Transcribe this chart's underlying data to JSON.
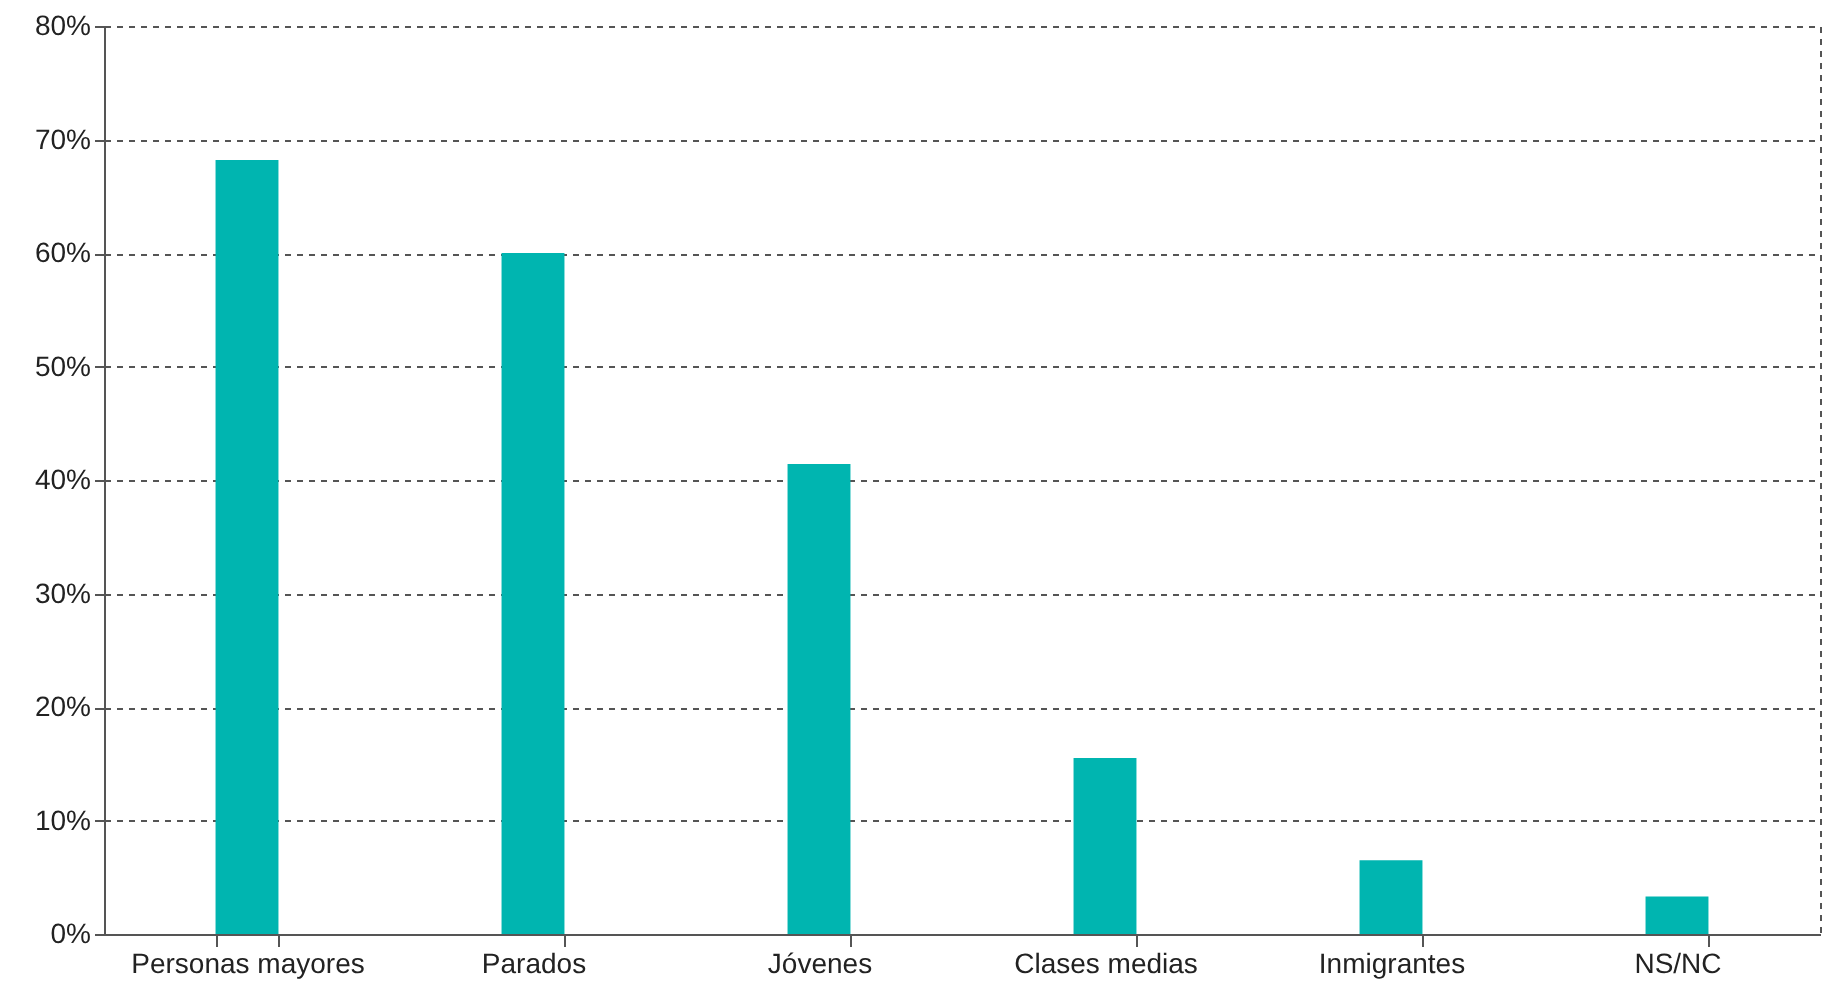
{
  "chart_data": {
    "type": "bar",
    "categories": [
      "Personas mayores",
      "Parados",
      "Jóvenes",
      "Clases medias",
      "Inmigrantes",
      "NS/NC"
    ],
    "values": [
      68.2,
      60,
      41.4,
      15.5,
      6.5,
      3.3
    ],
    "color": "#00b5b0",
    "ylim": [
      0,
      80
    ],
    "yticks": [
      {
        "value": 0,
        "label": "0%"
      },
      {
        "value": 10,
        "label": "10%"
      },
      {
        "value": 20,
        "label": "20%"
      },
      {
        "value": 30,
        "label": "30%"
      },
      {
        "value": 40,
        "label": "40%"
      },
      {
        "value": 50,
        "label": "50%"
      },
      {
        "value": 60,
        "label": "60%"
      },
      {
        "value": 70,
        "label": "70%"
      },
      {
        "value": 80,
        "label": "80%"
      }
    ],
    "grid": "y"
  }
}
